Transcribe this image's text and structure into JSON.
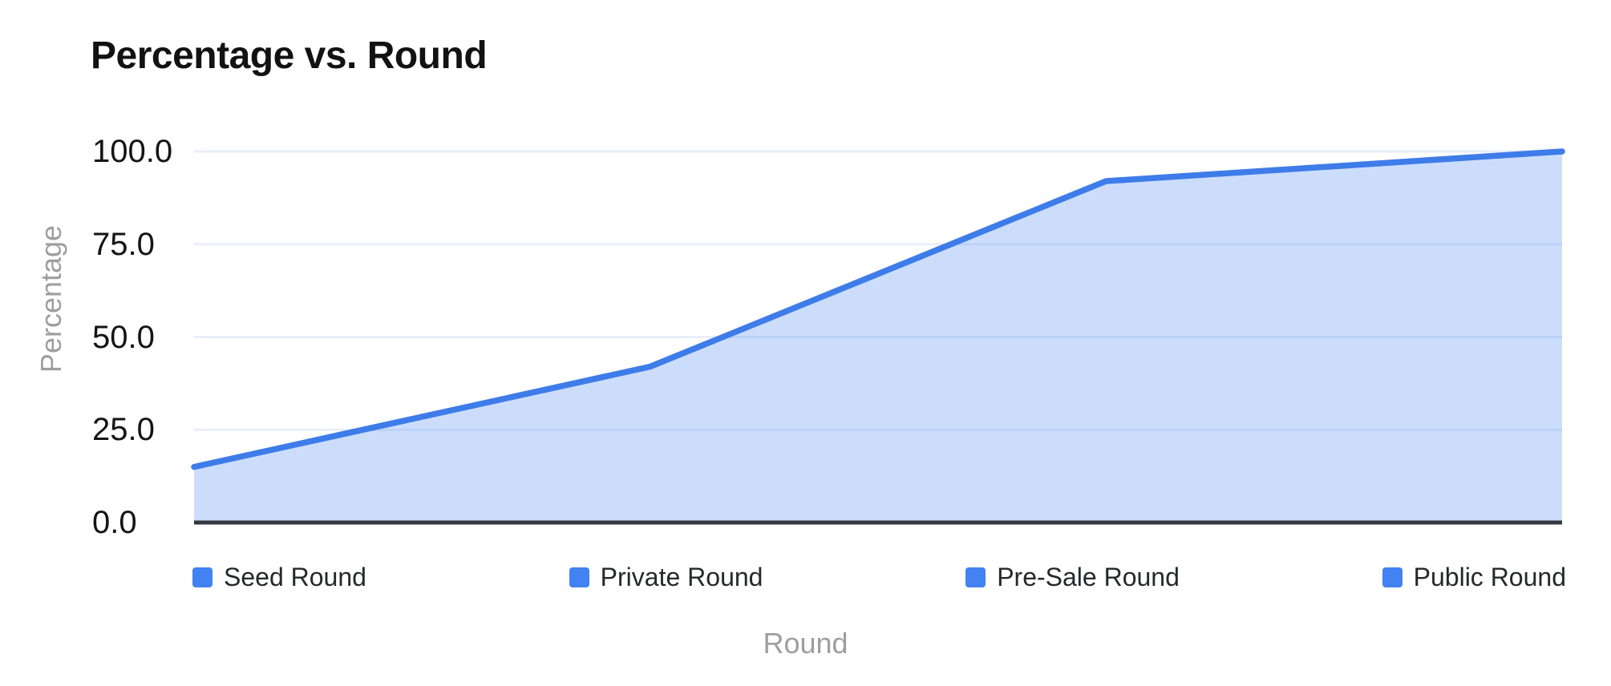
{
  "page": {
    "background": "#FFFFFF"
  },
  "colors": {
    "accent": "#4282F2",
    "line": "#3E7CE9",
    "area_fill": "rgba(66,130,242,0.27)",
    "gridline": "#E8EFFA",
    "axis_line": "#33383E",
    "heading_text": "#121212",
    "tick_text": "#141414",
    "axis_title_text": "#9E9E9E",
    "legend_text": "#26282B"
  },
  "chart_data": {
    "type": "area",
    "title": "Percentage vs. Round",
    "xlabel": "Round",
    "ylabel": "Percentage",
    "categories": [
      "Seed Round",
      "Private Round",
      "Pre-Sale Round",
      "Public Round"
    ],
    "values": [
      15,
      42,
      92,
      100
    ],
    "series": [
      {
        "name": "Percentage",
        "values": [
          15,
          42,
          92,
          100
        ]
      }
    ],
    "ylim": [
      0,
      100
    ],
    "yticks": [
      0,
      25,
      50,
      75,
      100
    ],
    "ytick_labels": [
      "0.0",
      "25.0",
      "50.0",
      "75.0",
      "100.0"
    ],
    "grid": true,
    "legend_position": "bottom",
    "legend_entries": [
      "Seed Round",
      "Private Round",
      "Pre-Sale Round",
      "Public Round"
    ]
  }
}
